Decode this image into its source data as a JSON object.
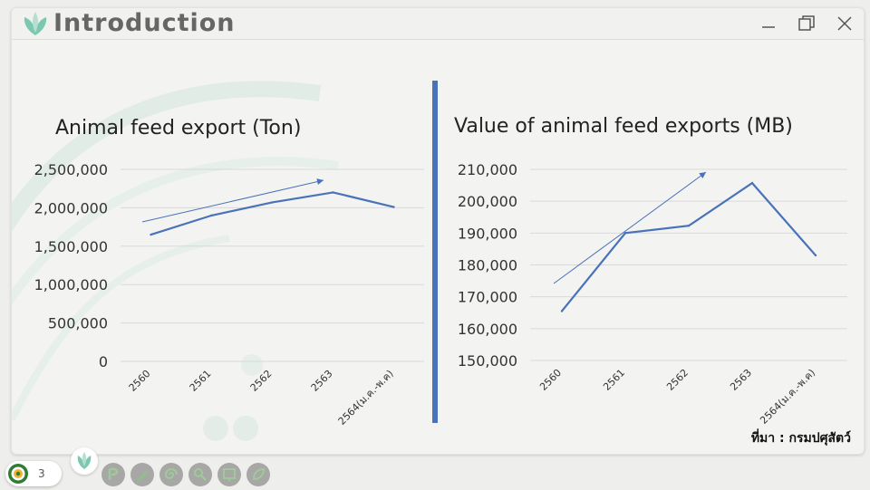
{
  "window": {
    "title": "Introduction"
  },
  "charts": {
    "left_title": "Animal feed export (Ton)",
    "right_title": "Value of animal feed exports (MB)"
  },
  "chart_data": [
    {
      "type": "line",
      "title": "Animal feed export (Ton)",
      "categories": [
        "2560",
        "2561",
        "2562",
        "2563",
        "2564(ม.ค.-พ.ค)"
      ],
      "series": [
        {
          "values": [
            1650000,
            1900000,
            2070000,
            2200000,
            2010000
          ]
        }
      ],
      "ylim": [
        0,
        2500000
      ],
      "yticks": [
        "0",
        "500,000",
        "1,000,000",
        "1,500,000",
        "2,000,000",
        "2,500,000"
      ],
      "grid": true,
      "line_color": "#4a72b8",
      "trend_arrow": true
    },
    {
      "type": "line",
      "title": "Value of animal feed exports (MB)",
      "categories": [
        "2560",
        "2561",
        "2562",
        "2563",
        "2564(ม.ค.-พ.ค)"
      ],
      "series": [
        {
          "values": [
            165500,
            190000,
            192300,
            205700,
            183000
          ]
        }
      ],
      "ylim": [
        150000,
        210000
      ],
      "yticks": [
        "150,000",
        "160,000",
        "170,000",
        "180,000",
        "190,000",
        "200,000",
        "210,000"
      ],
      "grid": true,
      "line_color": "#4a72b8",
      "trend_arrow": true
    }
  ],
  "footer": {
    "source": "ที่มา : กรมปศุสัตว์",
    "page_number": "3"
  },
  "icons": {
    "minimize": "minimize-icon",
    "restore": "restore-icon",
    "close": "close-icon",
    "nav": [
      "pen-icon",
      "pencil-icon",
      "spiral-icon",
      "magnifier-icon",
      "screen-icon",
      "leaf-icon"
    ]
  }
}
